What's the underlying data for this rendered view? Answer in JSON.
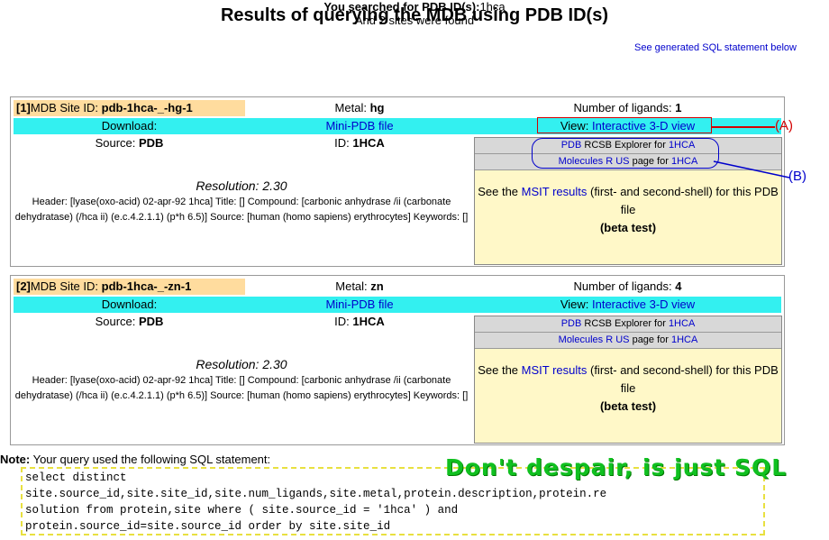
{
  "page": {
    "title": "Results of querying the MDB using PDB ID(s)",
    "sql_link": "See generated SQL statement below",
    "searched_label": "You searched for PDB ID(s):",
    "searched_value": "1hca",
    "found_text": "And 2 sites were found"
  },
  "sites": [
    {
      "index": "[1]",
      "id_label": "MDB Site ID: ",
      "id": "pdb-1hca-_-hg-1",
      "metal_label": "Metal: ",
      "metal": "hg",
      "ligands_label": "Number of ligands: ",
      "ligands": "1",
      "download_label": "Download:",
      "minipdb_link": "Mini-PDB file",
      "view_label": "View: ",
      "view_link": "Interactive 3-D view",
      "source_label": "Source: ",
      "source": "PDB",
      "pdbid_label": "ID: ",
      "pdbid": "1HCA",
      "resolution": "Resolution: 2.30",
      "header_text": "Header: [lyase(oxo-acid) 02-apr-92 1hca] Title: [] Compound: [carbonic anhydrase /ii (carbonate dehydratase) (/hca ii) (e.c.4.2.1.1) (p*h 6.5)] Source: [human (homo sapiens) erythrocytes] Keywords: []",
      "rcsb_pre": "PDB",
      "rcsb_mid": " RCSB Explorer for ",
      "rcsb_id": "1HCA",
      "mrus_pre": "Molecules R US",
      "mrus_mid": " page for ",
      "mrus_id": "1HCA",
      "msit_pre": "See the ",
      "msit_link": "MSIT results",
      "msit_post": " (first- and second-shell) for this PDB file",
      "msit_beta": "(beta test)"
    },
    {
      "index": "[2]",
      "id_label": "MDB Site ID: ",
      "id": "pdb-1hca-_-zn-1",
      "metal_label": "Metal: ",
      "metal": "zn",
      "ligands_label": "Number of ligands: ",
      "ligands": "4",
      "download_label": "Download:",
      "minipdb_link": "Mini-PDB file",
      "view_label": "View: ",
      "view_link": "Interactive 3-D view",
      "source_label": "Source: ",
      "source": "PDB",
      "pdbid_label": "ID: ",
      "pdbid": "1HCA",
      "resolution": "Resolution: 2.30",
      "header_text": "Header: [lyase(oxo-acid) 02-apr-92 1hca] Title: [] Compound: [carbonic anhydrase /ii (carbonate dehydratase) (/hca ii) (e.c.4.2.1.1) (p*h 6.5)] Source: [human (homo sapiens) erythrocytes] Keywords: []",
      "rcsb_pre": "PDB",
      "rcsb_mid": " RCSB Explorer for ",
      "rcsb_id": "1HCA",
      "mrus_pre": "Molecules R US",
      "mrus_mid": " page for ",
      "mrus_id": "1HCA",
      "msit_pre": "See the ",
      "msit_link": "MSIT results",
      "msit_post": " (first- and second-shell) for this PDB file",
      "msit_beta": "(beta test)"
    }
  ],
  "annotations": {
    "a_label": "(A)",
    "b_label": "(B)",
    "a_color": "#d40000",
    "b_color": "#0000cc"
  },
  "note": {
    "label": "Note:",
    "text": " Your query used the following SQL statement:",
    "sql": "select distinct\nsite.source_id,site.site_id,site.num_ligands,site.metal,protein.description,protein.re\nsolution from protein,site where ( site.source_id = '1hca' ) and\nprotein.source_id=site.source_id order by site.site_id",
    "callout": "Don't despair, is just SQL",
    "callout_color": "#10c020"
  }
}
